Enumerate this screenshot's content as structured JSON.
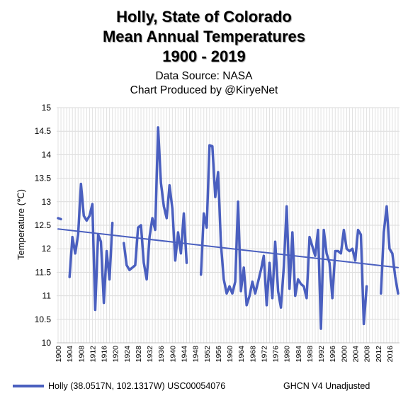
{
  "chart_data": {
    "type": "line",
    "title": [
      "Holly, State of Colorado",
      "Mean Annual Temperatures",
      "1900 - 2019"
    ],
    "subtitle": [
      "Data Source: NASA",
      "Chart Produced by @KiryeNet"
    ],
    "ylabel": "Temperature (℃)",
    "ylim": [
      10,
      15
    ],
    "yticks": [
      "10",
      "10.5",
      "11",
      "11.5",
      "12",
      "12.5",
      "13",
      "13.5",
      "14",
      "14.5",
      "15"
    ],
    "xlim": [
      1900,
      2019
    ],
    "xticks": [
      "1900",
      "1904",
      "1908",
      "1912",
      "1916",
      "1920",
      "1924",
      "1928",
      "1932",
      "1936",
      "1940",
      "1944",
      "1948",
      "1952",
      "1956",
      "1960",
      "1964",
      "1968",
      "1972",
      "1976",
      "1980",
      "1984",
      "1988",
      "1992",
      "1996",
      "2000",
      "2004",
      "2008",
      "2012",
      "2016"
    ],
    "grid": true,
    "series": [
      {
        "name": "Holly (38.0517N, 102.1317W) USC00054076",
        "color": "#4a5fbf",
        "x": [
          1900,
          1901,
          1902,
          1903,
          1904,
          1905,
          1906,
          1907,
          1908,
          1909,
          1910,
          1911,
          1912,
          1913,
          1914,
          1915,
          1916,
          1917,
          1918,
          1919,
          1920,
          1921,
          1922,
          1923,
          1924,
          1925,
          1926,
          1927,
          1928,
          1929,
          1930,
          1931,
          1932,
          1933,
          1934,
          1935,
          1936,
          1937,
          1938,
          1939,
          1940,
          1941,
          1942,
          1943,
          1944,
          1945,
          1946,
          1947,
          1948,
          1949,
          1950,
          1951,
          1952,
          1953,
          1954,
          1955,
          1956,
          1957,
          1958,
          1959,
          1960,
          1961,
          1962,
          1963,
          1964,
          1965,
          1966,
          1967,
          1968,
          1969,
          1970,
          1971,
          1972,
          1973,
          1974,
          1975,
          1976,
          1977,
          1978,
          1979,
          1980,
          1981,
          1982,
          1983,
          1984,
          1985,
          1986,
          1987,
          1988,
          1989,
          1990,
          1991,
          1992,
          1993,
          1994,
          1995,
          1996,
          1997,
          1998,
          1999,
          2000,
          2001,
          2002,
          2003,
          2004,
          2005,
          2006,
          2007,
          2008,
          2009,
          2010,
          2011,
          2012,
          2013,
          2014,
          2015,
          2016,
          2017,
          2018,
          2019
        ],
        "values": [
          12.65,
          12.63,
          null,
          null,
          11.4,
          12.25,
          11.9,
          12.3,
          13.38,
          12.7,
          12.6,
          12.7,
          12.95,
          10.7,
          12.3,
          12.15,
          10.85,
          11.95,
          11.35,
          12.55,
          null,
          null,
          null,
          12.12,
          11.65,
          11.55,
          11.6,
          11.65,
          12.45,
          12.5,
          11.7,
          11.35,
          12.25,
          12.65,
          12.4,
          14.58,
          13.4,
          12.9,
          12.65,
          13.35,
          12.85,
          11.75,
          12.35,
          11.9,
          12.75,
          11.7,
          null,
          null,
          null,
          null,
          11.45,
          12.75,
          12.45,
          14.2,
          14.18,
          13.1,
          13.63,
          12.1,
          11.35,
          11.05,
          11.2,
          11.05,
          11.3,
          13.0,
          11.1,
          11.6,
          10.8,
          11.0,
          11.3,
          11.05,
          11.3,
          11.55,
          11.85,
          10.8,
          11.7,
          10.95,
          12.15,
          11.1,
          10.75,
          11.6,
          12.9,
          11.15,
          12.35,
          11.0,
          11.35,
          11.25,
          11.2,
          10.95,
          12.25,
          12.05,
          11.85,
          12.4,
          10.3,
          12.4,
          11.9,
          11.7,
          10.95,
          11.95,
          11.95,
          11.9,
          12.4,
          12.0,
          11.95,
          12.0,
          11.75,
          12.4,
          12.3,
          10.4,
          11.2,
          null,
          null,
          null,
          null,
          11.05,
          12.35,
          12.9,
          12.0,
          11.9,
          11.4,
          11.05
        ]
      },
      {
        "name": "trend",
        "color": "#4a5fbf",
        "x": [
          1900,
          2019
        ],
        "values": [
          12.42,
          11.6
        ]
      }
    ]
  },
  "legend": {
    "label": "Holly (38.0517N, 102.1317W) USC00054076",
    "color": "#4a5fbf",
    "placement": "bottom-left"
  },
  "note": "GHCN V4 Unadjusted"
}
